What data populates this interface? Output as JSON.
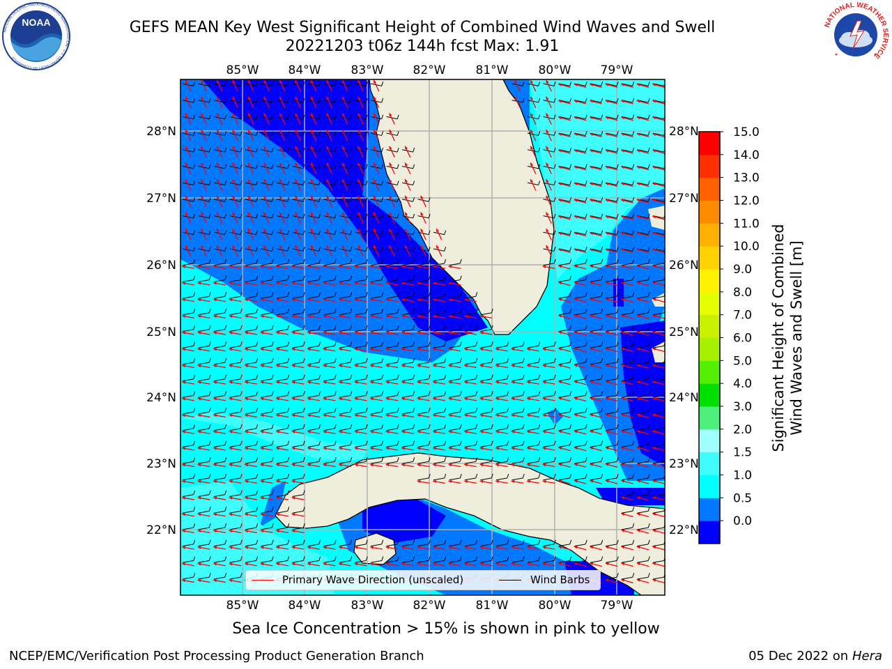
{
  "header": {
    "title_line1": "GEFS MEAN Key West Significant Height of Combined Wind Waves and Swell",
    "title_line2": "20221203 t06z 144h fcst   Max: 1.91"
  },
  "map": {
    "lon_labels": [
      "85°W",
      "84°W",
      "83°W",
      "82°W",
      "81°W",
      "80°W",
      "79°W"
    ],
    "lat_labels": [
      "28°N",
      "27°N",
      "26°N",
      "25°N",
      "24°N",
      "23°N",
      "22°N"
    ],
    "colors": {
      "land": "#efeedd",
      "band_0_0_5": "#0000ff",
      "band_0_5_1_0": "#0078ff",
      "band_1_0_1_5": "#00ffff",
      "band_1_5_2_0": "#40fdfd",
      "wave_arrow": "#ff0000",
      "wind_barb": "#000000",
      "grid": "#b0b0b0"
    },
    "legend": {
      "primary_wave": "Primary Wave Direction (unscaled)",
      "wind_barbs": "Wind Barbs"
    }
  },
  "colorbar": {
    "label_line1": "Significant Height of Combined",
    "label_line2": "Wind Waves and Swell [m]",
    "ticks": [
      "15.0",
      "14.0",
      "13.0",
      "12.0",
      "11.0",
      "10.0",
      "9.0",
      "8.0",
      "7.0",
      "6.0",
      "5.0",
      "4.0",
      "3.0",
      "2.0",
      "1.5",
      "1.0",
      "0.5",
      "0.0"
    ],
    "colors": [
      "#0000ff",
      "#0078ff",
      "#00ffff",
      "#40fdfd",
      "#a0ffff",
      "#4df07a",
      "#00e000",
      "#52f000",
      "#a6f000",
      "#c8f000",
      "#e6ff00",
      "#fff200",
      "#ffd200",
      "#ffb000",
      "#ff8c00",
      "#ff6000",
      "#ff3000",
      "#ff0000"
    ]
  },
  "logos": {
    "noaa_text": "NOAA",
    "noaa_ring": "NATIONAL OCEANIC AND ATMOSPHERIC ADMINISTRATION · U.S. DEPARTMENT OF COMMERCE",
    "nws_ring": "NATIONAL WEATHER SERVICE"
  },
  "footer": {
    "note": "Sea Ice Concentration > 15% is shown in pink to yellow",
    "left": "NCEP/EMC/Verification Post Processing Product Generation Branch",
    "date": "05 Dec 2022 on",
    "host": "Hera"
  }
}
